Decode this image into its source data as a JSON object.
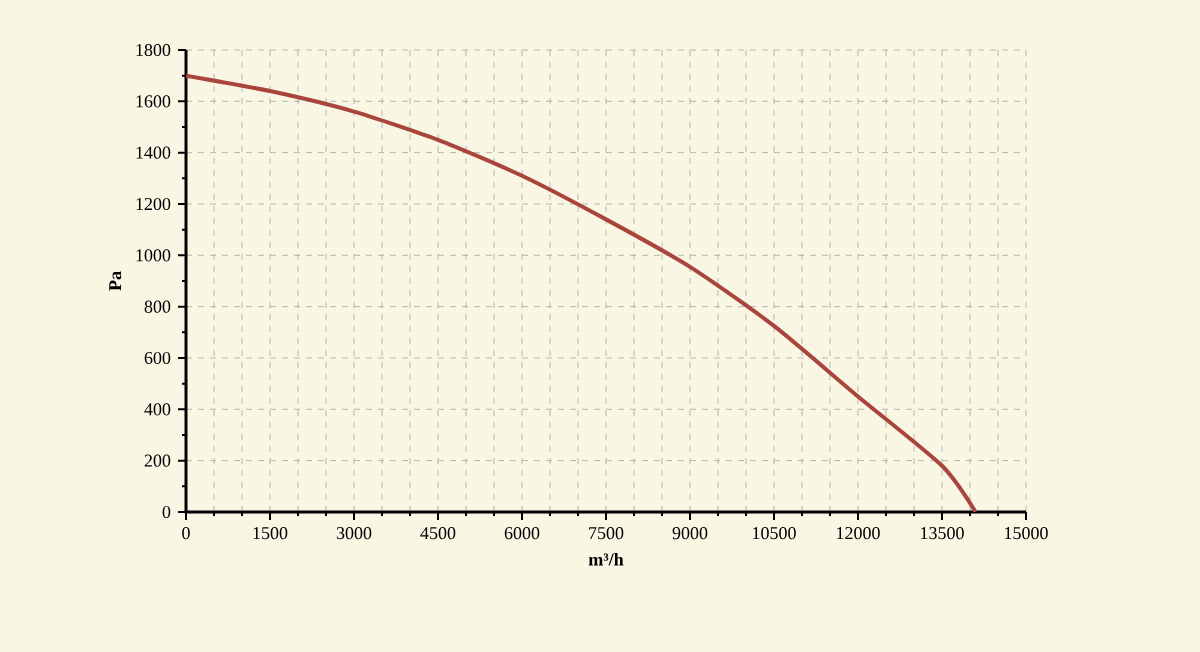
{
  "chart_data": {
    "type": "line",
    "xlabel": "m³/h",
    "ylabel": "Pa",
    "x": [
      0,
      1500,
      3000,
      4500,
      6000,
      7500,
      9000,
      10500,
      12000,
      13500,
      14100
    ],
    "values": [
      1700,
      1640,
      1560,
      1450,
      1310,
      1140,
      955,
      725,
      450,
      180,
      0
    ],
    "color": "#a8463e",
    "xlim": [
      0,
      15000
    ],
    "ylim": [
      0,
      1800
    ],
    "xticks": [
      0,
      1500,
      3000,
      4500,
      6000,
      7500,
      9000,
      10500,
      12000,
      13500,
      15000
    ],
    "yticks": [
      0,
      200,
      400,
      600,
      800,
      1000,
      1200,
      1400,
      1600,
      1800
    ],
    "grid": true,
    "marker": "none",
    "line_style": "solid"
  }
}
